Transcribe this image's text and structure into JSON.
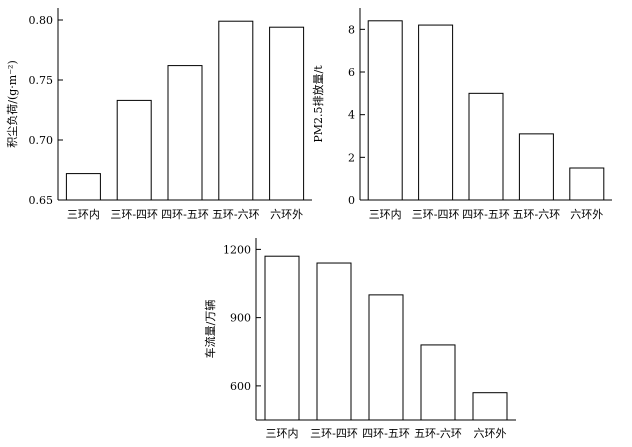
{
  "chart_data": [
    {
      "type": "bar",
      "categories": [
        "三环内",
        "三环-四环",
        "四环-五环",
        "五环-六环",
        "六环外"
      ],
      "values": [
        0.672,
        0.733,
        0.762,
        0.799,
        0.794
      ],
      "ylabel": "积尘负荷/(g·m⁻²)",
      "ylim": [
        0.65,
        0.81
      ],
      "yticks": [
        0.65,
        0.7,
        0.75,
        0.8
      ],
      "ytick_labels": [
        "0.65",
        "0.70",
        "0.75",
        "0.80"
      ],
      "grid": false,
      "legend": null
    },
    {
      "type": "bar",
      "categories": [
        "三环内",
        "三环-四环",
        "四环-五环",
        "五环-六环",
        "六环外"
      ],
      "values": [
        8.4,
        8.2,
        5.0,
        3.1,
        1.5
      ],
      "ylabel": "PM2.5排放量/t",
      "ylim": [
        0,
        9
      ],
      "yticks": [
        0,
        2,
        4,
        6,
        8
      ],
      "ytick_labels": [
        "0",
        "2",
        "4",
        "6",
        "8"
      ],
      "grid": false,
      "legend": null
    },
    {
      "type": "bar",
      "categories": [
        "三环内",
        "三环-四环",
        "四环-五环",
        "五环-六环",
        "六环外"
      ],
      "values": [
        1170,
        1140,
        1000,
        780,
        570
      ],
      "ylabel": "车流量/万辆",
      "ylim": [
        450,
        1250
      ],
      "yticks": [
        600,
        900,
        1200
      ],
      "ytick_labels": [
        "600",
        "900",
        "1200"
      ],
      "grid": false,
      "legend": null
    }
  ]
}
